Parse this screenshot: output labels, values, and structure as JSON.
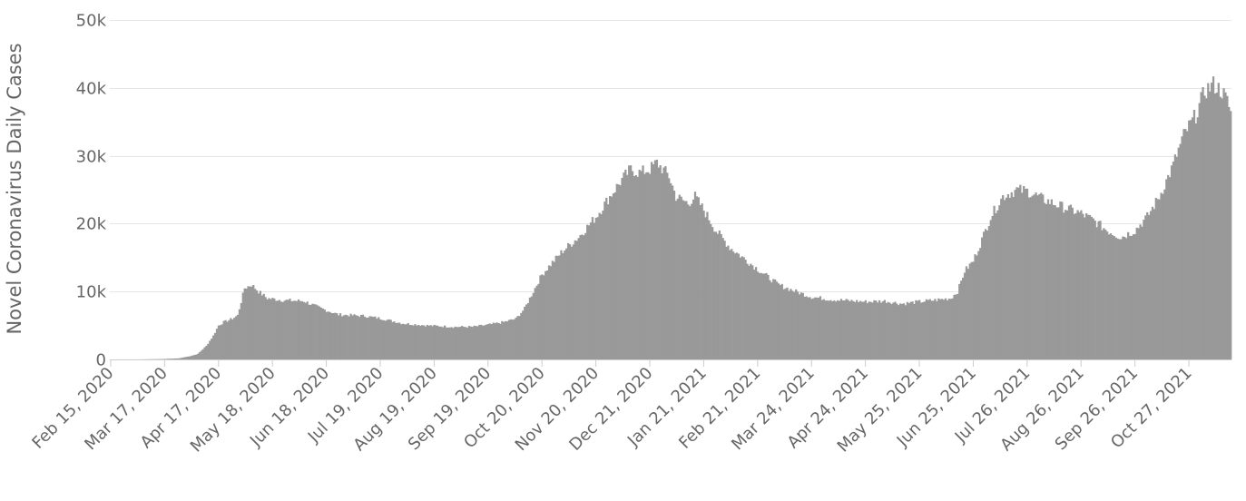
{
  "chart_data": {
    "type": "bar",
    "title": "",
    "xlabel": "",
    "ylabel": "Novel Coronavirus Daily Cases",
    "ylim": [
      0,
      50000
    ],
    "grid": true,
    "legend": "none",
    "bar_color": "#999999",
    "y_ticks": [
      {
        "value": 0,
        "label": "0"
      },
      {
        "value": 10000,
        "label": "10k"
      },
      {
        "value": 20000,
        "label": "20k"
      },
      {
        "value": 30000,
        "label": "30k"
      },
      {
        "value": 40000,
        "label": "40k"
      },
      {
        "value": 50000,
        "label": "50k"
      }
    ],
    "x_start": "2020-02-15",
    "x_end": "2021-11-20",
    "x_ticks": [
      {
        "date": "2020-02-15",
        "label": "Feb 15, 2020"
      },
      {
        "date": "2020-03-17",
        "label": "Mar 17, 2020"
      },
      {
        "date": "2020-04-17",
        "label": "Apr 17, 2020"
      },
      {
        "date": "2020-05-18",
        "label": "May 18, 2020"
      },
      {
        "date": "2020-06-18",
        "label": "Jun 18, 2020"
      },
      {
        "date": "2020-07-19",
        "label": "Jul 19, 2020"
      },
      {
        "date": "2020-08-19",
        "label": "Aug 19, 2020"
      },
      {
        "date": "2020-09-19",
        "label": "Sep 19, 2020"
      },
      {
        "date": "2020-10-20",
        "label": "Oct 20, 2020"
      },
      {
        "date": "2020-11-20",
        "label": "Nov 20, 2020"
      },
      {
        "date": "2020-12-21",
        "label": "Dec 21, 2020"
      },
      {
        "date": "2021-01-21",
        "label": "Jan 21, 2021"
      },
      {
        "date": "2021-02-21",
        "label": "Feb 21, 2021"
      },
      {
        "date": "2021-03-24",
        "label": "Mar 24, 2021"
      },
      {
        "date": "2021-04-24",
        "label": "Apr 24, 2021"
      },
      {
        "date": "2021-05-25",
        "label": "May 25, 2021"
      },
      {
        "date": "2021-06-25",
        "label": "Jun 25, 2021"
      },
      {
        "date": "2021-07-26",
        "label": "Jul 26, 2021"
      },
      {
        "date": "2021-08-26",
        "label": "Aug 26, 2021"
      },
      {
        "date": "2021-09-26",
        "label": "Sep 26, 2021"
      },
      {
        "date": "2021-10-27",
        "label": "Oct 27, 2021"
      }
    ],
    "series": [
      {
        "values_by_date": [
          [
            "2020-02-15",
            0
          ],
          [
            "2020-03-01",
            0
          ],
          [
            "2020-03-15",
            50
          ],
          [
            "2020-03-25",
            150
          ],
          [
            "2020-04-01",
            500
          ],
          [
            "2020-04-05",
            800
          ],
          [
            "2020-04-10",
            2000
          ],
          [
            "2020-04-14",
            3500
          ],
          [
            "2020-04-17",
            5000
          ],
          [
            "2020-04-20",
            5500
          ],
          [
            "2020-04-25",
            6000
          ],
          [
            "2020-04-28",
            6500
          ],
          [
            "2020-05-02",
            10500
          ],
          [
            "2020-05-06",
            11000
          ],
          [
            "2020-05-10",
            10000
          ],
          [
            "2020-05-15",
            9000
          ],
          [
            "2020-05-25",
            8700
          ],
          [
            "2020-06-05",
            8600
          ],
          [
            "2020-06-15",
            7500
          ],
          [
            "2020-06-25",
            6600
          ],
          [
            "2020-07-10",
            6400
          ],
          [
            "2020-07-20",
            6000
          ],
          [
            "2020-08-01",
            5300
          ],
          [
            "2020-08-15",
            5000
          ],
          [
            "2020-08-30",
            4800
          ],
          [
            "2020-09-10",
            4800
          ],
          [
            "2020-09-19",
            5100
          ],
          [
            "2020-09-28",
            5500
          ],
          [
            "2020-10-05",
            6000
          ],
          [
            "2020-10-10",
            7500
          ],
          [
            "2020-10-15",
            10000
          ],
          [
            "2020-10-20",
            12500
          ],
          [
            "2020-10-25",
            14000
          ],
          [
            "2020-11-01",
            16000
          ],
          [
            "2020-11-10",
            18000
          ],
          [
            "2020-11-20",
            21000
          ],
          [
            "2020-11-28",
            24000
          ],
          [
            "2020-12-05",
            26500
          ],
          [
            "2020-12-10",
            28000
          ],
          [
            "2020-12-15",
            27500
          ],
          [
            "2020-12-21",
            28000
          ],
          [
            "2020-12-25",
            29000
          ],
          [
            "2021-01-01",
            27000
          ],
          [
            "2021-01-05",
            24000
          ],
          [
            "2021-01-12",
            23000
          ],
          [
            "2021-01-16",
            24000
          ],
          [
            "2021-01-21",
            22000
          ],
          [
            "2021-01-28",
            19000
          ],
          [
            "2021-02-05",
            16500
          ],
          [
            "2021-02-15",
            14500
          ],
          [
            "2021-02-25",
            12500
          ],
          [
            "2021-03-05",
            11000
          ],
          [
            "2021-03-15",
            10000
          ],
          [
            "2021-03-24",
            9200
          ],
          [
            "2021-04-05",
            8800
          ],
          [
            "2021-04-24",
            8500
          ],
          [
            "2021-05-05",
            8600
          ],
          [
            "2021-05-15",
            8200
          ],
          [
            "2021-05-25",
            8500
          ],
          [
            "2021-06-05",
            8800
          ],
          [
            "2021-06-12",
            9000
          ],
          [
            "2021-06-16",
            10000
          ],
          [
            "2021-06-20",
            13000
          ],
          [
            "2021-06-25",
            14500
          ],
          [
            "2021-06-29",
            17000
          ],
          [
            "2021-07-05",
            21000
          ],
          [
            "2021-07-12",
            24000
          ],
          [
            "2021-07-20",
            25000
          ],
          [
            "2021-07-26",
            24800
          ],
          [
            "2021-08-05",
            23500
          ],
          [
            "2021-08-15",
            22500
          ],
          [
            "2021-08-26",
            21500
          ],
          [
            "2021-09-02",
            20500
          ],
          [
            "2021-09-10",
            19000
          ],
          [
            "2021-09-18",
            18000
          ],
          [
            "2021-09-26",
            19000
          ],
          [
            "2021-10-03",
            21000
          ],
          [
            "2021-10-10",
            24000
          ],
          [
            "2021-10-17",
            28000
          ],
          [
            "2021-10-24",
            33000
          ],
          [
            "2021-10-31",
            36000
          ],
          [
            "2021-11-05",
            39500
          ],
          [
            "2021-11-10",
            40500
          ],
          [
            "2021-11-15",
            39500
          ],
          [
            "2021-11-18",
            38000
          ],
          [
            "2021-11-20",
            36500
          ]
        ]
      }
    ]
  }
}
